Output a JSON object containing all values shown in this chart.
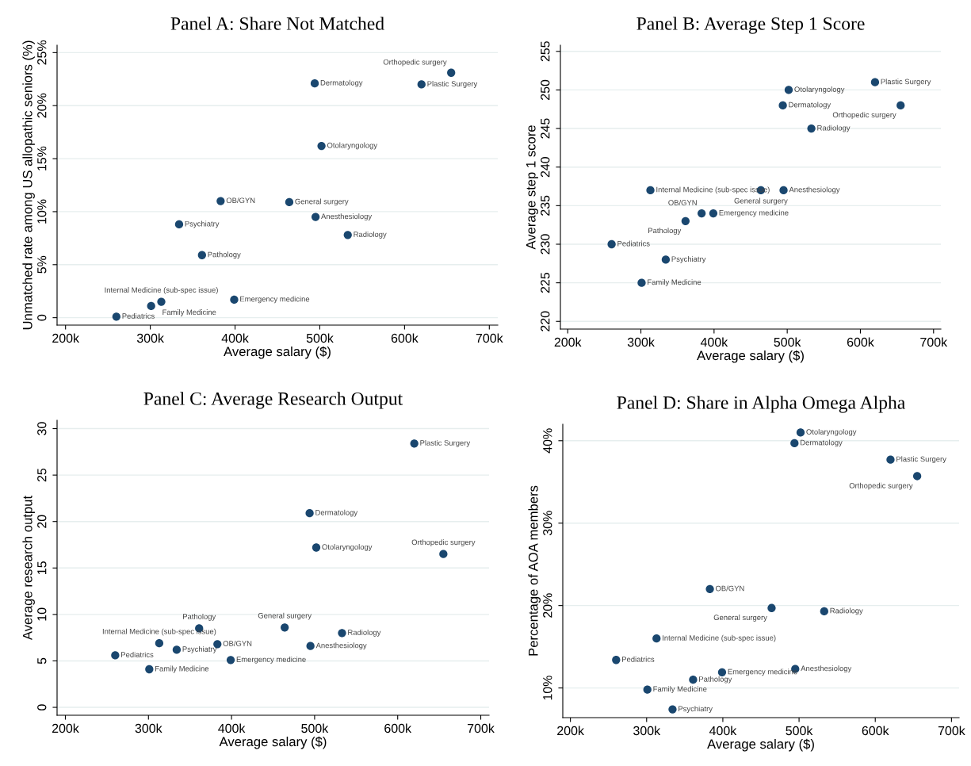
{
  "chart_data": [
    {
      "type": "scatter",
      "title": "Panel A: Share Not Matched",
      "xlabel": "Average salary ($)",
      "ylabel": "Unmatched rate among US allopathic seniors (%)",
      "marker": "circle",
      "grid": "y",
      "xlim": [
        190000,
        710000
      ],
      "xticks": [
        {
          "value": 200000,
          "label": "200k"
        },
        {
          "value": 300000,
          "label": "300k"
        },
        {
          "value": 400000,
          "label": "400k"
        },
        {
          "value": 500000,
          "label": "500k"
        },
        {
          "value": 600000,
          "label": "600k"
        },
        {
          "value": 700000,
          "label": "700k"
        }
      ],
      "ylim": [
        -0.7,
        25.7
      ],
      "yticks": [
        0,
        {
          "value": 5,
          "label": "5%"
        },
        {
          "value": 10,
          "label": "10%"
        },
        {
          "value": 15,
          "label": "15%"
        },
        {
          "value": 20,
          "label": "20%"
        },
        {
          "value": 25,
          "label": "25%"
        }
      ],
      "series": [
        {
          "color": "#1a476f",
          "x": [
            260000,
            301000,
            313000,
            334000,
            361000,
            383000,
            399000,
            464000,
            494000,
            495000,
            502000,
            533000,
            620000,
            655000
          ],
          "values": [
            0.1,
            1.1,
            1.5,
            8.8,
            5.9,
            11.0,
            1.7,
            10.9,
            22.1,
            9.5,
            16.2,
            7.8,
            22.0,
            23.1
          ]
        }
      ],
      "annotations": [
        {
          "text": "Pediatrics",
          "x": 260000,
          "y": 0.1
        },
        {
          "text": "Family Medicine",
          "x": 301000,
          "y": 1.1
        },
        {
          "text": "Internal Medicine (sub-spec issue)",
          "x": 313000,
          "y": 1.5
        },
        {
          "text": "Psychiatry",
          "x": 334000,
          "y": 8.8
        },
        {
          "text": "Pathology",
          "x": 361000,
          "y": 5.9
        },
        {
          "text": "OB/GYN",
          "x": 383000,
          "y": 11.0
        },
        {
          "text": "Emergency medicine",
          "x": 399000,
          "y": 1.7
        },
        {
          "text": "General surgery",
          "x": 464000,
          "y": 10.9
        },
        {
          "text": "Dermatology",
          "x": 494000,
          "y": 22.1
        },
        {
          "text": "Anesthesiology",
          "x": 495000,
          "y": 9.5
        },
        {
          "text": "Otolaryngology",
          "x": 502000,
          "y": 16.2
        },
        {
          "text": "Radiology",
          "x": 533000,
          "y": 7.8
        },
        {
          "text": "Plastic Surgery",
          "x": 620000,
          "y": 22.0
        },
        {
          "text": "Orthopedic surgery",
          "x": 655000,
          "y": 23.1
        }
      ]
    },
    {
      "type": "scatter",
      "title": "Panel B: Average Step 1 Score",
      "xlabel": "Average salary ($)",
      "ylabel": "Average step 1 score",
      "marker": "circle",
      "grid": "y",
      "xlim": [
        190000,
        710000
      ],
      "xticks": [
        {
          "value": 200000,
          "label": "200k"
        },
        {
          "value": 300000,
          "label": "300k"
        },
        {
          "value": 400000,
          "label": "400k"
        },
        {
          "value": 500000,
          "label": "500k"
        },
        {
          "value": 600000,
          "label": "600k"
        },
        {
          "value": 700000,
          "label": "700k"
        }
      ],
      "ylim": [
        219,
        255.8
      ],
      "yticks": [
        220,
        225,
        230,
        235,
        240,
        245,
        250,
        255
      ],
      "series": [
        {
          "color": "#1a476f",
          "x": [
            260000,
            301000,
            313000,
            334000,
            361000,
            383000,
            399000,
            464000,
            494000,
            495000,
            502000,
            533000,
            620000,
            655000
          ],
          "values": [
            230,
            225,
            237,
            228,
            233,
            234,
            234,
            237,
            248,
            237,
            250,
            245,
            251,
            248
          ]
        }
      ],
      "annotations": [
        {
          "text": "Pediatrics",
          "x": 260000,
          "y": 230
        },
        {
          "text": "Family Medicine",
          "x": 301000,
          "y": 225
        },
        {
          "text": "Internal Medicine (sub-spec issue)",
          "x": 313000,
          "y": 237
        },
        {
          "text": "Psychiatry",
          "x": 334000,
          "y": 228
        },
        {
          "text": "Pathology",
          "x": 361000,
          "y": 233
        },
        {
          "text": "OB/GYN",
          "x": 383000,
          "y": 234
        },
        {
          "text": "Emergency medicine",
          "x": 399000,
          "y": 234
        },
        {
          "text": "General surgery",
          "x": 464000,
          "y": 237
        },
        {
          "text": "Dermatology",
          "x": 494000,
          "y": 248
        },
        {
          "text": "Anesthesiology",
          "x": 495000,
          "y": 237
        },
        {
          "text": "Otolaryngology",
          "x": 502000,
          "y": 250
        },
        {
          "text": "Radiology",
          "x": 533000,
          "y": 245
        },
        {
          "text": "Plastic Surgery",
          "x": 620000,
          "y": 251
        },
        {
          "text": "Orthopedic surgery",
          "x": 655000,
          "y": 248
        }
      ]
    },
    {
      "type": "scatter",
      "title": "Panel C: Average Research Output",
      "xlabel": "Average salary ($)",
      "ylabel": "Average research output",
      "marker": "circle",
      "grid": "y",
      "xlim": [
        190000,
        710000
      ],
      "xticks": [
        {
          "value": 200000,
          "label": "200k"
        },
        {
          "value": 300000,
          "label": "300k"
        },
        {
          "value": 400000,
          "label": "400k"
        },
        {
          "value": 500000,
          "label": "500k"
        },
        {
          "value": 600000,
          "label": "600k"
        },
        {
          "value": 700000,
          "label": "700k"
        }
      ],
      "ylim": [
        -0.85,
        30.9
      ],
      "yticks": [
        0,
        5,
        10,
        15,
        20,
        25,
        30
      ],
      "series": [
        {
          "color": "#1a476f",
          "x": [
            260000,
            301000,
            313000,
            334000,
            361000,
            383000,
            399000,
            464000,
            494000,
            495000,
            502000,
            533000,
            620000,
            655000
          ],
          "values": [
            5.6,
            4.1,
            6.9,
            6.2,
            8.5,
            6.8,
            5.1,
            8.6,
            20.9,
            6.6,
            17.2,
            8.0,
            28.4,
            16.5
          ]
        }
      ],
      "annotations": [
        {
          "text": "Pediatrics",
          "x": 260000,
          "y": 5.6
        },
        {
          "text": "Family Medicine",
          "x": 301000,
          "y": 4.1
        },
        {
          "text": "Internal Medicine (sub-spec issue)",
          "x": 313000,
          "y": 6.9
        },
        {
          "text": "Psychiatry",
          "x": 334000,
          "y": 6.2
        },
        {
          "text": "Pathology",
          "x": 361000,
          "y": 8.5
        },
        {
          "text": "OB/GYN",
          "x": 383000,
          "y": 6.8
        },
        {
          "text": "Emergency medicine",
          "x": 399000,
          "y": 5.1
        },
        {
          "text": "General surgery",
          "x": 464000,
          "y": 8.6
        },
        {
          "text": "Dermatology",
          "x": 494000,
          "y": 20.9
        },
        {
          "text": "Anesthesiology",
          "x": 495000,
          "y": 6.6
        },
        {
          "text": "Otolaryngology",
          "x": 502000,
          "y": 17.2
        },
        {
          "text": "Radiology",
          "x": 533000,
          "y": 8.0
        },
        {
          "text": "Plastic Surgery",
          "x": 620000,
          "y": 28.4
        },
        {
          "text": "Orthopedic surgery",
          "x": 655000,
          "y": 16.5
        }
      ]
    },
    {
      "type": "scatter",
      "title": "Panel D: Share in Alpha Omega Alpha",
      "xlabel": "Average salary ($)",
      "ylabel": "Percentage of AOA members",
      "marker": "circle",
      "grid": "y",
      "xlim": [
        190000,
        710000
      ],
      "xticks": [
        {
          "value": 200000,
          "label": "200k"
        },
        {
          "value": 300000,
          "label": "300k"
        },
        {
          "value": 400000,
          "label": "400k"
        },
        {
          "value": 500000,
          "label": "500k"
        },
        {
          "value": 600000,
          "label": "600k"
        },
        {
          "value": 700000,
          "label": "700k"
        }
      ],
      "ylim": [
        6.4,
        42.0
      ],
      "yticks": [
        {
          "value": 10,
          "label": "10%"
        },
        {
          "value": 20,
          "label": "20%"
        },
        {
          "value": 30,
          "label": "30%"
        },
        {
          "value": 40,
          "label": "40%"
        }
      ],
      "series": [
        {
          "color": "#1a476f",
          "x": [
            260000,
            301000,
            313000,
            334000,
            361000,
            383000,
            399000,
            464000,
            494000,
            495000,
            502000,
            533000,
            620000,
            655000
          ],
          "values": [
            13.4,
            9.8,
            16.0,
            7.4,
            11.0,
            22.0,
            11.9,
            19.7,
            39.7,
            12.3,
            41.0,
            19.3,
            37.7,
            35.7
          ]
        }
      ],
      "annotations": [
        {
          "text": "Pediatrics",
          "x": 260000,
          "y": 13.4
        },
        {
          "text": "Family Medicine",
          "x": 301000,
          "y": 9.8
        },
        {
          "text": "Internal Medicine (sub-spec issue)",
          "x": 313000,
          "y": 16.0
        },
        {
          "text": "Psychiatry",
          "x": 334000,
          "y": 7.4
        },
        {
          "text": "Pathology",
          "x": 361000,
          "y": 11.0
        },
        {
          "text": "OB/GYN",
          "x": 383000,
          "y": 22.0
        },
        {
          "text": "Emergency medicine",
          "x": 399000,
          "y": 11.9
        },
        {
          "text": "General surgery",
          "x": 464000,
          "y": 19.7
        },
        {
          "text": "Dermatology",
          "x": 494000,
          "y": 39.7
        },
        {
          "text": "Anesthesiology",
          "x": 495000,
          "y": 12.3
        },
        {
          "text": "Otolaryngology",
          "x": 502000,
          "y": 41.0
        },
        {
          "text": "Radiology",
          "x": 533000,
          "y": 19.3
        },
        {
          "text": "Plastic Surgery",
          "x": 620000,
          "y": 37.7
        },
        {
          "text": "Orthopedic surgery",
          "x": 655000,
          "y": 35.7
        }
      ]
    }
  ]
}
